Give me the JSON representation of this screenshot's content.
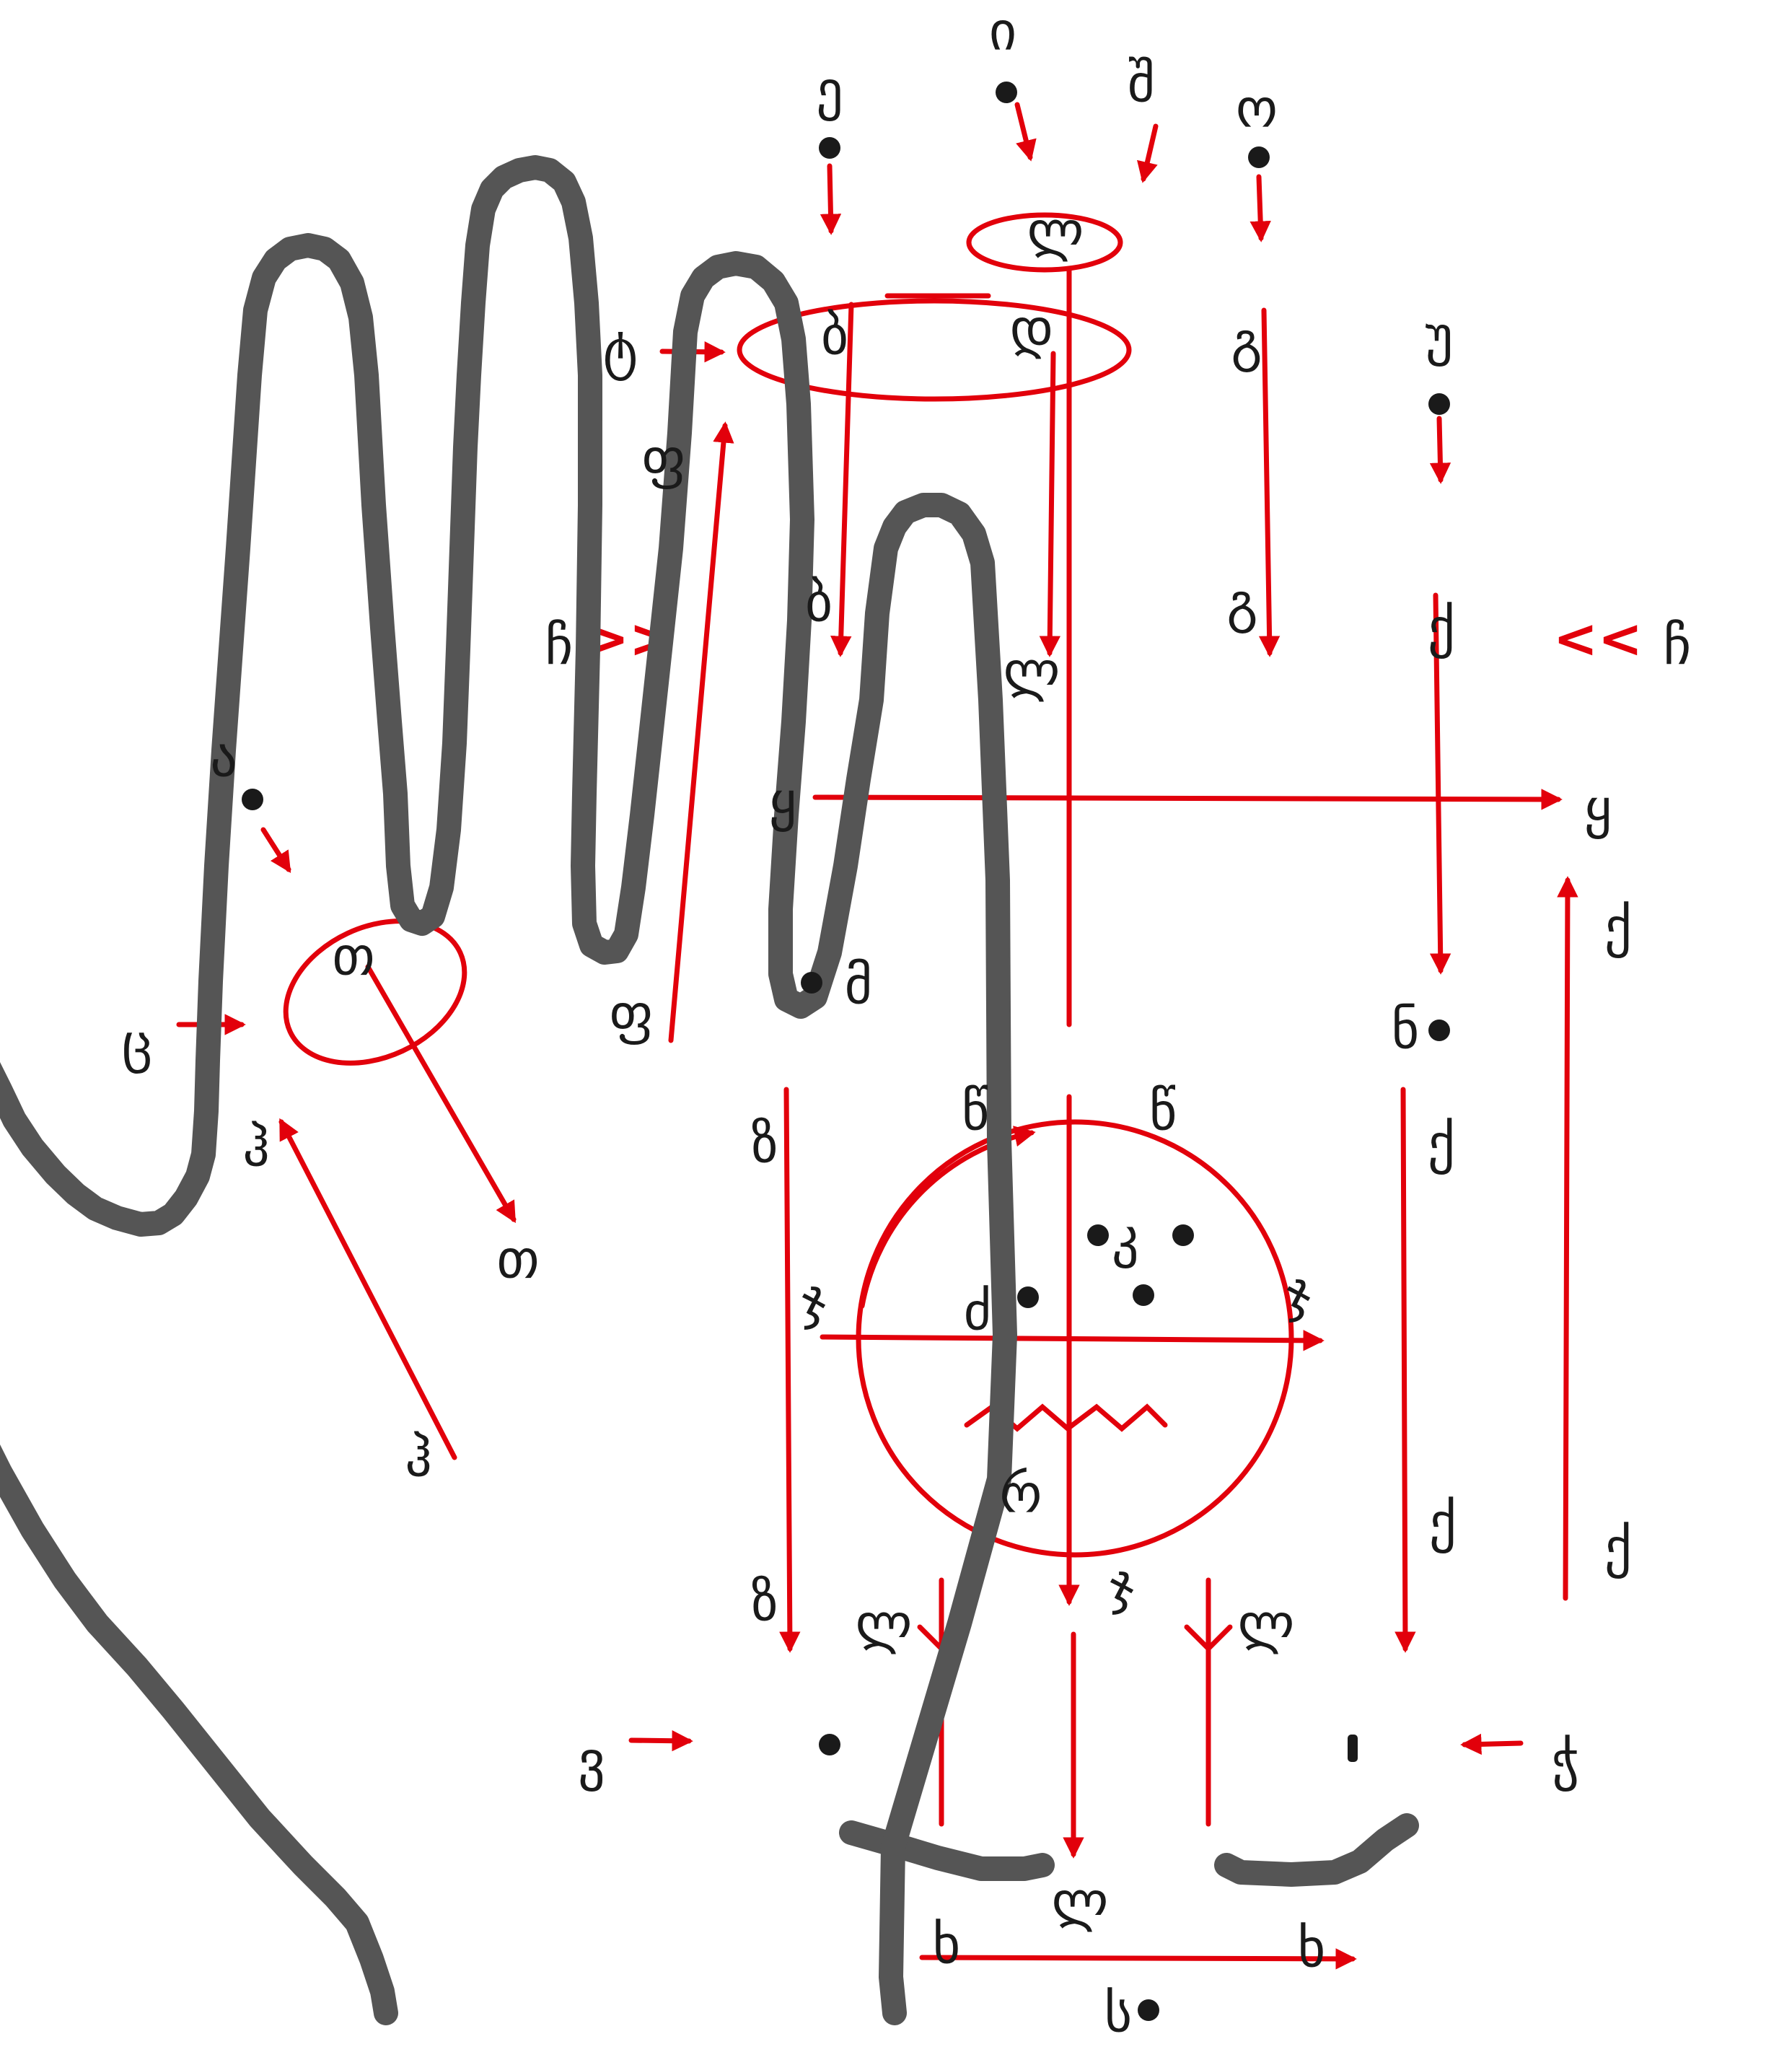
{
  "colors": {
    "hand": "#555555",
    "accent": "#e2000b",
    "text": "#1a1a1a",
    "background": "#ffffff"
  },
  "chevrons": {
    "right": ">>",
    "left": "<<"
  },
  "labels": {
    "a": "ა",
    "b1": "ბ",
    "b2": "ბ",
    "g1": "გ",
    "g2": "გ",
    "d1": "დ",
    "d2": "დ",
    "e": "ე",
    "v": "ვ",
    "z1": "ზ",
    "z2": "ზ",
    "t1": "თ",
    "t2": "თ",
    "i": "ი",
    "k": "კ",
    "l1": "ლ",
    "l2": "ლ",
    "m": "მ",
    "n": "ნ",
    "o": "ო",
    "p1": "პ",
    "p2": "პ",
    "zh": "ჟ",
    "r": "რ",
    "s": "ს",
    "tt": "ტ",
    "u": "უ",
    "f1": "ფ",
    "f2": "ფ",
    "k1": "ქ",
    "k2": "ქ",
    "k3": "ქ",
    "k4": "ქ",
    "gh": "ღ",
    "q1": "ყ",
    "q2": "ყ",
    "sh": "შ",
    "ch1": "ჩ",
    "ch2": "ჩ",
    "c": "ც",
    "dz": "ძ",
    "ts1": "წ",
    "ts2": "წ",
    "tch": "ჭ",
    "kh1": "ხ",
    "kh2": "ხ",
    "j1": "ჯ",
    "j2": "ჯ",
    "j3": "ჯ",
    "h1": "ჰ",
    "h2": "ჰ",
    "lg1": "ლ",
    "lg2": "ლ",
    "lbot": "ლ"
  }
}
